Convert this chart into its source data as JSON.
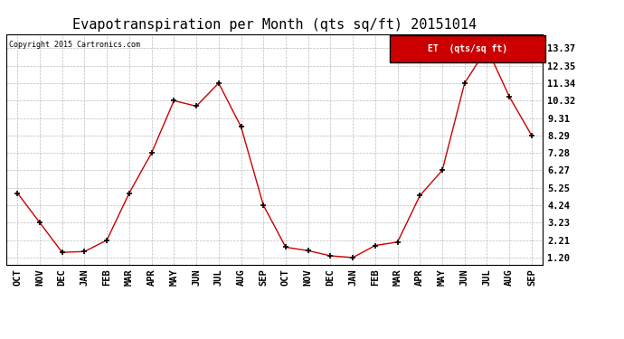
{
  "title": "Evapotranspiration per Month (qts sq/ft) 20151014",
  "copyright": "Copyright 2015 Cartronics.com",
  "legend_label": "ET  (qts/sq ft)",
  "categories": [
    "OCT",
    "NOV",
    "DEC",
    "JAN",
    "FEB",
    "MAR",
    "APR",
    "MAY",
    "JUN",
    "JUL",
    "AUG",
    "SEP",
    "OCT",
    "NOV",
    "DEC",
    "JAN",
    "FEB",
    "MAR",
    "APR",
    "MAY",
    "JUN",
    "JUL",
    "AUG",
    "SEP"
  ],
  "values": [
    4.95,
    3.23,
    1.5,
    1.55,
    2.21,
    4.95,
    7.28,
    10.32,
    10.0,
    11.34,
    8.8,
    4.24,
    1.8,
    1.6,
    1.3,
    1.2,
    1.9,
    2.1,
    4.8,
    6.27,
    11.34,
    13.37,
    10.55,
    8.29
  ],
  "yticks": [
    1.2,
    2.21,
    3.23,
    4.24,
    5.25,
    6.27,
    7.28,
    8.29,
    9.31,
    10.32,
    11.34,
    12.35,
    13.37
  ],
  "ylim": [
    0.8,
    14.2
  ],
  "line_color": "#cc0000",
  "marker_color": "#000000",
  "grid_color": "#bbbbbb",
  "background_color": "#ffffff",
  "title_fontsize": 11,
  "tick_fontsize": 7.5,
  "legend_bg": "#cc0000",
  "legend_text_color": "#ffffff"
}
